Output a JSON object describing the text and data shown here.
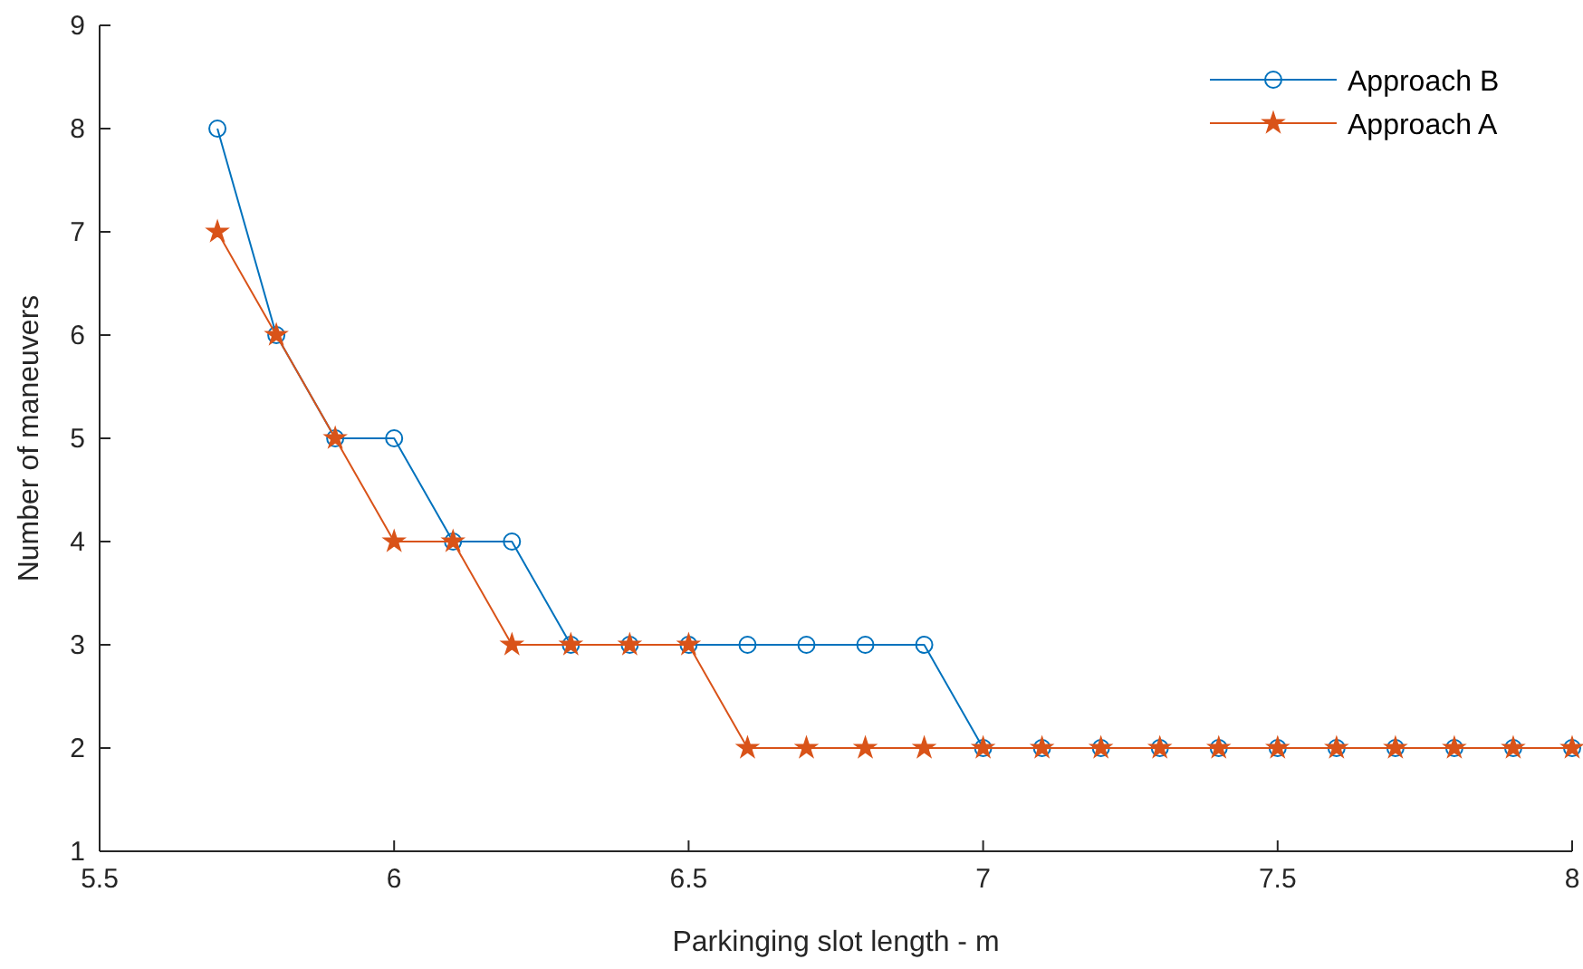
{
  "chart_data": {
    "type": "line",
    "xlabel": "Parkinging slot length - m",
    "ylabel": "Number of maneuvers",
    "x": [
      5.7,
      5.8,
      5.9,
      6.0,
      6.1,
      6.2,
      6.3,
      6.4,
      6.5,
      6.6,
      6.7,
      6.8,
      6.9,
      7.0,
      7.1,
      7.2,
      7.3,
      7.4,
      7.5,
      7.6,
      7.7,
      7.8,
      7.9,
      8.0
    ],
    "series": [
      {
        "name": "Approach B",
        "color": "#0072bd",
        "marker": "circle",
        "values": [
          8,
          6,
          5,
          5,
          4,
          4,
          3,
          3,
          3,
          3,
          3,
          3,
          3,
          2,
          2,
          2,
          2,
          2,
          2,
          2,
          2,
          2,
          2,
          2
        ]
      },
      {
        "name": "Approach A",
        "color": "#d95319",
        "marker": "star",
        "values": [
          7,
          6,
          5,
          4,
          4,
          3,
          3,
          3,
          3,
          2,
          2,
          2,
          2,
          2,
          2,
          2,
          2,
          2,
          2,
          2,
          2,
          2,
          2,
          2
        ]
      }
    ],
    "xlim": [
      5.5,
      8
    ],
    "xticks": [
      5.5,
      6,
      6.5,
      7,
      7.5,
      8
    ],
    "ylim": [
      1,
      9
    ],
    "yticks": [
      1,
      2,
      3,
      4,
      5,
      6,
      7,
      8,
      9
    ],
    "legend": "top right",
    "grid": false,
    "line_style": "solid"
  }
}
